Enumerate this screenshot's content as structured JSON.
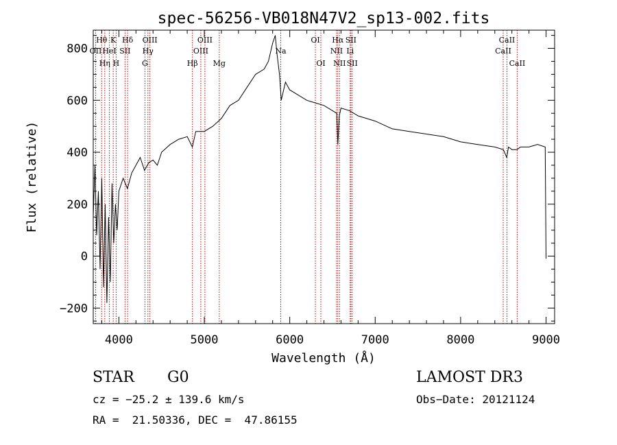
{
  "chart_data": {
    "type": "line",
    "title": "spec-56256-VB018N47V2_sp13-002.fits",
    "xlabel": "Wavelength (Å)",
    "ylabel": "Flux (relative)",
    "xlim": [
      3700,
      9100
    ],
    "ylim": [
      -260,
      870
    ],
    "xticks": [
      4000,
      5000,
      6000,
      7000,
      8000,
      9000
    ],
    "yticks": [
      -200,
      0,
      200,
      400,
      600,
      800
    ],
    "series": [
      {
        "name": "flux",
        "x": [
          3700,
          3720,
          3740,
          3760,
          3780,
          3800,
          3820,
          3840,
          3860,
          3880,
          3900,
          3920,
          3940,
          3960,
          3980,
          4000,
          4050,
          4100,
          4150,
          4200,
          4250,
          4300,
          4350,
          4400,
          4450,
          4500,
          4600,
          4700,
          4800,
          4860,
          4900,
          5000,
          5100,
          5200,
          5300,
          5400,
          5500,
          5600,
          5700,
          5750,
          5800,
          5830,
          5850,
          5880,
          5900,
          5950,
          6000,
          6100,
          6200,
          6300,
          6400,
          6500,
          6550,
          6563,
          6580,
          6600,
          6700,
          6800,
          7000,
          7200,
          7400,
          7600,
          7800,
          8000,
          8200,
          8400,
          8500,
          8540,
          8560,
          8600,
          8660,
          8700,
          8800,
          8900,
          8990,
          9000
        ],
        "y": [
          150,
          350,
          80,
          250,
          -50,
          300,
          -120,
          200,
          -180,
          150,
          -100,
          280,
          50,
          200,
          100,
          250,
          300,
          260,
          320,
          350,
          380,
          330,
          360,
          370,
          350,
          400,
          430,
          450,
          460,
          420,
          480,
          480,
          500,
          530,
          580,
          600,
          650,
          700,
          720,
          750,
          820,
          850,
          780,
          700,
          600,
          670,
          640,
          620,
          600,
          590,
          580,
          560,
          550,
          430,
          540,
          570,
          560,
          540,
          520,
          490,
          480,
          470,
          460,
          440,
          430,
          420,
          410,
          380,
          420,
          410,
          410,
          420,
          420,
          430,
          420,
          -10
        ]
      }
    ],
    "lines": [
      {
        "wave": 3728,
        "label": "OII",
        "row": 1
      },
      {
        "wave": 3798,
        "label": "Hθ",
        "row": 0
      },
      {
        "wave": 3835,
        "label": "Hη",
        "row": 2
      },
      {
        "wave": 3889,
        "label": "HeI",
        "row": 1
      },
      {
        "wave": 3934,
        "label": "K",
        "row": 0
      },
      {
        "wave": 3968,
        "label": "H",
        "row": 2
      },
      {
        "wave": 4072,
        "label": "SII",
        "row": 1
      },
      {
        "wave": 4102,
        "label": "Hδ",
        "row": 0
      },
      {
        "wave": 4305,
        "label": "G",
        "row": 2
      },
      {
        "wave": 4340,
        "label": "Hγ",
        "row": 1
      },
      {
        "wave": 4363,
        "label": "OIII",
        "row": 0
      },
      {
        "wave": 4861,
        "label": "Hβ",
        "row": 2
      },
      {
        "wave": 4959,
        "label": "OIII",
        "row": 1
      },
      {
        "wave": 5007,
        "label": "OIII",
        "row": 0
      },
      {
        "wave": 5175,
        "label": "Mg",
        "row": 2
      },
      {
        "wave": 5894,
        "label": "Na",
        "row": 1
      },
      {
        "wave": 6300,
        "label": "OI",
        "row": 0
      },
      {
        "wave": 6364,
        "label": "OI",
        "row": 2
      },
      {
        "wave": 6548,
        "label": "NII",
        "row": 1
      },
      {
        "wave": 6563,
        "label": "Hα",
        "row": 0
      },
      {
        "wave": 6583,
        "label": "NII",
        "row": 2
      },
      {
        "wave": 6707,
        "label": "Li",
        "row": 1
      },
      {
        "wave": 6716,
        "label": "SII",
        "row": 0
      },
      {
        "wave": 6731,
        "label": "SII",
        "row": 2
      },
      {
        "wave": 8498,
        "label": "CaII",
        "row": 1
      },
      {
        "wave": 8542,
        "label": "CaII",
        "row": 0
      },
      {
        "wave": 8662,
        "label": "CaII",
        "row": 2
      }
    ]
  },
  "info": {
    "class_label": "STAR",
    "subclass": "G0",
    "survey": "LAMOST DR3",
    "cz": "cz = −25.2 ± 139.6 km/s",
    "obs_date": "Obs−Date: 20121124",
    "coords": "RA =  21.50336, DEC =  47.86155"
  },
  "colors": {
    "line_markers": "#c00000",
    "spectrum": "#000000",
    "axes": "#000000"
  }
}
